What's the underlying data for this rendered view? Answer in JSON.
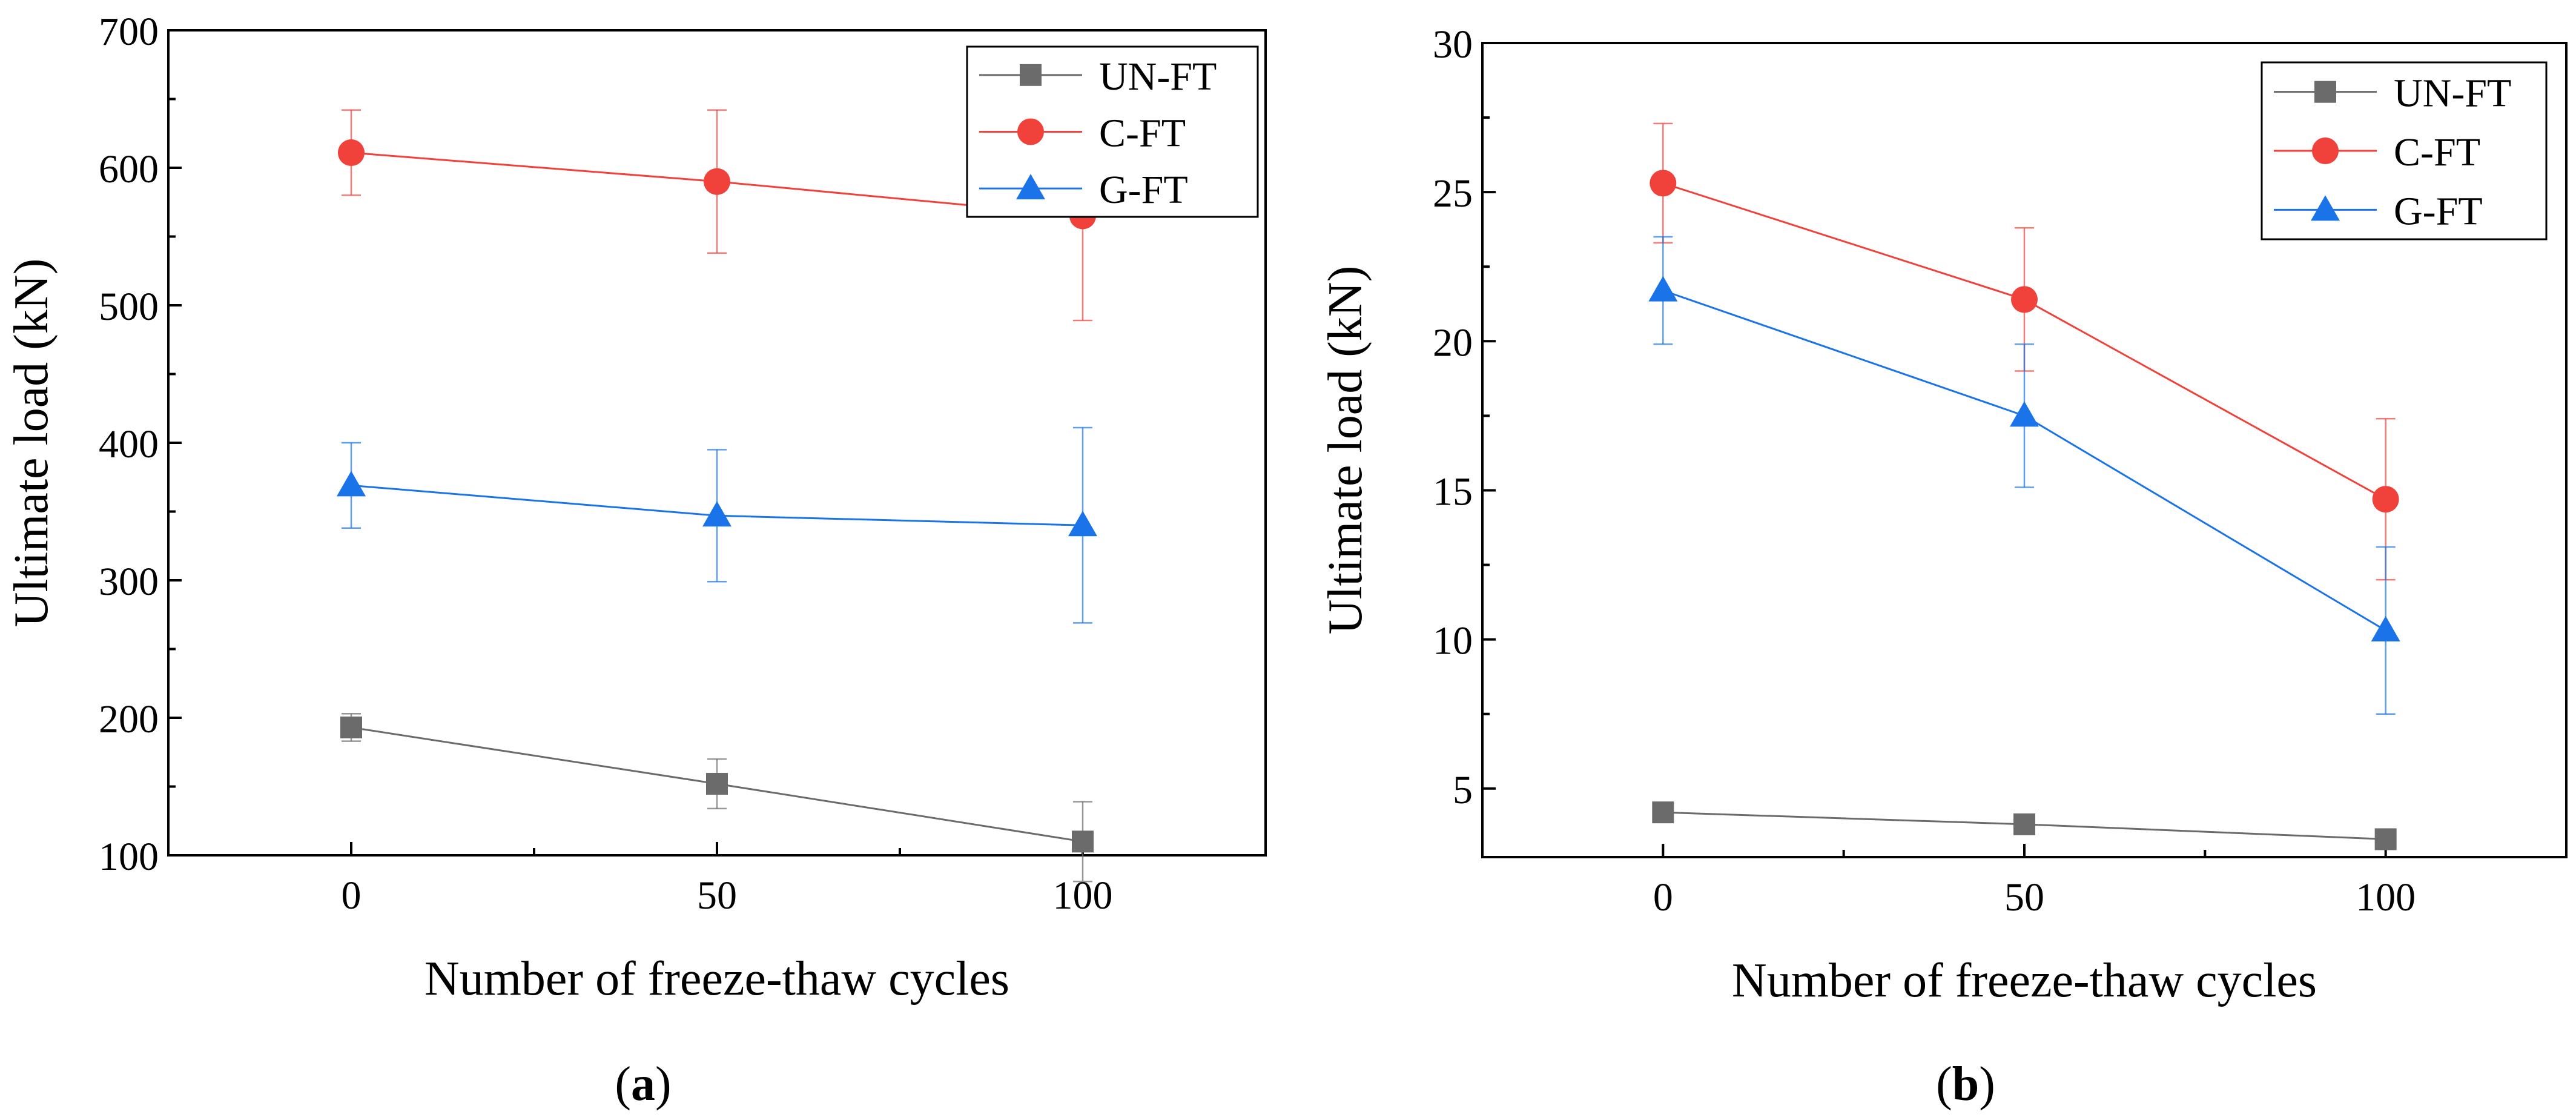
{
  "figure": {
    "panels": [
      {
        "paren_open": "(",
        "letter": "a",
        "paren_close": ")"
      },
      {
        "paren_open": "(",
        "letter": "b",
        "paren_close": ")"
      }
    ]
  },
  "chart_data": [
    {
      "type": "line",
      "title": "",
      "xlabel": "Number of freeze-thaw cycles",
      "ylabel": "Ultimate load (kN)",
      "x": [
        0,
        50,
        100
      ],
      "xlim": [
        -25,
        125
      ],
      "ylim": [
        100,
        700
      ],
      "xticks": [
        0,
        50,
        100
      ],
      "yticks": [
        100,
        200,
        300,
        400,
        500,
        600,
        700
      ],
      "legend_position": "top-right",
      "grid": false,
      "series": [
        {
          "name": "UN-FT",
          "values": [
            193,
            152,
            110
          ],
          "errors": [
            10,
            18,
            29
          ],
          "color": "#6b6b6b",
          "marker": "square"
        },
        {
          "name": "C-FT",
          "values": [
            611,
            590,
            565
          ],
          "errors": [
            31,
            52,
            76
          ],
          "color": "#f0413a",
          "marker": "circle"
        },
        {
          "name": "G-FT",
          "values": [
            369,
            347,
            340
          ],
          "errors": [
            31,
            48,
            71
          ],
          "color": "#1a73e8",
          "marker": "triangle"
        }
      ]
    },
    {
      "type": "line",
      "title": "",
      "xlabel": "Number of freeze-thaw cycles",
      "ylabel": "Ultimate load (kN)",
      "x": [
        0,
        50,
        100
      ],
      "xlim": [
        -25,
        125
      ],
      "ylim": [
        2.7,
        30
      ],
      "xticks": [
        0,
        50,
        100
      ],
      "yticks": [
        5,
        10,
        15,
        20,
        25,
        30
      ],
      "legend_position": "top-right",
      "grid": false,
      "series": [
        {
          "name": "UN-FT",
          "values": [
            4.2,
            3.8,
            3.3
          ],
          "errors": [
            0,
            0,
            0
          ],
          "color": "#6b6b6b",
          "marker": "square"
        },
        {
          "name": "C-FT",
          "values": [
            25.3,
            21.4,
            14.7
          ],
          "errors": [
            2.0,
            2.4,
            2.7
          ],
          "color": "#f0413a",
          "marker": "circle"
        },
        {
          "name": "G-FT",
          "values": [
            21.7,
            17.5,
            10.3
          ],
          "errors": [
            1.8,
            2.4,
            2.8
          ],
          "color": "#1a73e8",
          "marker": "triangle"
        }
      ]
    }
  ]
}
